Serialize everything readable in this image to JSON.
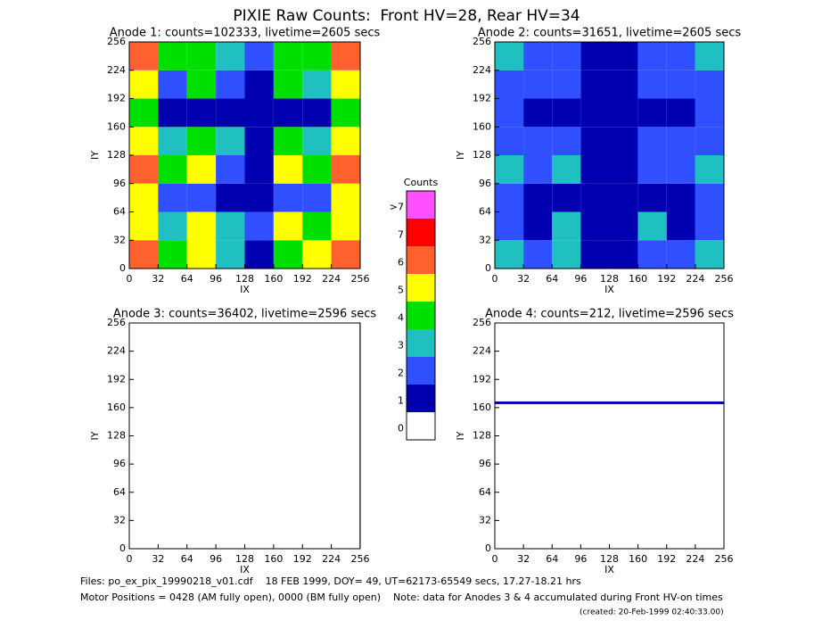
{
  "title": "PIXIE Raw Counts:  Front HV=28, Rear HV=34",
  "colorbar": {
    "title": "Counts",
    "ticks": [
      0,
      1,
      2,
      3,
      4,
      5,
      6,
      7,
      {
        "value": 8,
        "label": ">7"
      }
    ],
    "colors": [
      "#ffffff",
      "#0000b0",
      "#3050ff",
      "#20c0c0",
      "#00e000",
      "#ffff00",
      "#ff6030",
      "#ff0000",
      "#ff50ff"
    ]
  },
  "chart_data": [
    {
      "type": "heatmap",
      "title": "Anode 1: counts=102333, livetime=2605 secs",
      "xlabel": "IX",
      "ylabel": "IY",
      "xlim": [
        0,
        256
      ],
      "ylim": [
        0,
        256
      ],
      "xticks": [
        0,
        32,
        64,
        96,
        128,
        160,
        192,
        224,
        256
      ],
      "yticks": [
        0,
        32,
        64,
        96,
        128,
        160,
        192,
        224,
        256
      ],
      "xbins": [
        0,
        32,
        64,
        96,
        128,
        160,
        192,
        224,
        256
      ],
      "ybins": [
        0,
        32,
        64,
        96,
        128,
        160,
        192,
        224,
        256
      ],
      "z": [
        [
          6,
          4,
          5,
          3,
          1,
          4,
          5,
          6
        ],
        [
          5,
          3,
          5,
          3,
          2,
          5,
          4,
          5
        ],
        [
          5,
          2,
          2,
          1,
          1,
          2,
          2,
          5
        ],
        [
          6,
          4,
          5,
          2,
          1,
          5,
          4,
          6
        ],
        [
          5,
          3,
          4,
          3,
          1,
          4,
          3,
          5
        ],
        [
          4,
          1,
          1,
          1,
          1,
          1,
          1,
          4
        ],
        [
          5,
          2,
          4,
          2,
          1,
          4,
          3,
          5
        ],
        [
          6,
          4,
          4,
          3,
          2,
          4,
          4,
          6
        ]
      ]
    },
    {
      "type": "heatmap",
      "title": "Anode 2: counts=31651, livetime=2605 secs",
      "xlabel": "IX",
      "ylabel": "IY",
      "xlim": [
        0,
        256
      ],
      "ylim": [
        0,
        256
      ],
      "xticks": [
        0,
        32,
        64,
        96,
        128,
        160,
        192,
        224,
        256
      ],
      "yticks": [
        0,
        32,
        64,
        96,
        128,
        160,
        192,
        224,
        256
      ],
      "xbins": [
        0,
        32,
        64,
        96,
        128,
        160,
        192,
        224,
        256
      ],
      "ybins": [
        0,
        32,
        64,
        96,
        128,
        160,
        192,
        224,
        256
      ],
      "z": [
        [
          3,
          2,
          3,
          1,
          1,
          2,
          2,
          3
        ],
        [
          2,
          1,
          3,
          1,
          1,
          3,
          1,
          2
        ],
        [
          2,
          1,
          1,
          1,
          1,
          1,
          1,
          2
        ],
        [
          3,
          2,
          3,
          1,
          1,
          2,
          2,
          3
        ],
        [
          2,
          2,
          2,
          1,
          1,
          2,
          2,
          2
        ],
        [
          2,
          1,
          1,
          1,
          1,
          1,
          1,
          2
        ],
        [
          2,
          2,
          2,
          1,
          1,
          2,
          2,
          2
        ],
        [
          3,
          2,
          2,
          1,
          1,
          2,
          2,
          3
        ]
      ]
    },
    {
      "type": "heatmap",
      "title": "Anode 3: counts=36402, livetime=2596 secs",
      "xlabel": "IX",
      "ylabel": "IY",
      "xlim": [
        0,
        256
      ],
      "ylim": [
        0,
        256
      ],
      "xticks": [
        0,
        32,
        64,
        96,
        128,
        160,
        192,
        224,
        256
      ],
      "yticks": [
        0,
        32,
        64,
        96,
        128,
        160,
        192,
        224,
        256
      ],
      "xbins": [
        0,
        255,
        256
      ],
      "ybins": [
        0,
        256
      ],
      "z": [
        [
          0,
          8
        ]
      ]
    },
    {
      "type": "heatmap",
      "title": "Anode 4: counts=212, livetime=2596 secs",
      "xlabel": "IX",
      "ylabel": "IY",
      "xlim": [
        0,
        256
      ],
      "ylim": [
        0,
        256
      ],
      "xticks": [
        0,
        32,
        64,
        96,
        128,
        160,
        192,
        224,
        256
      ],
      "yticks": [
        0,
        32,
        64,
        96,
        128,
        160,
        192,
        224,
        256
      ],
      "xbins": [
        0,
        256
      ],
      "ybins": [
        0,
        164,
        167,
        256
      ],
      "z": [
        [
          0
        ],
        [
          1
        ],
        [
          0
        ]
      ]
    }
  ],
  "footer": [
    "Files: po_ex_pix_19990218_v01.cdf    18 FEB 1999, DOY= 49, UT=62173-65549 secs, 17.27-18.21 hrs",
    "Motor Positions = 0428 (AM fully open), 0000 (BM fully open)    Note: data for Anodes 3 & 4 accumulated during Front HV-on times"
  ],
  "created": "(created: 20-Feb-1999 02:40:33.00)"
}
